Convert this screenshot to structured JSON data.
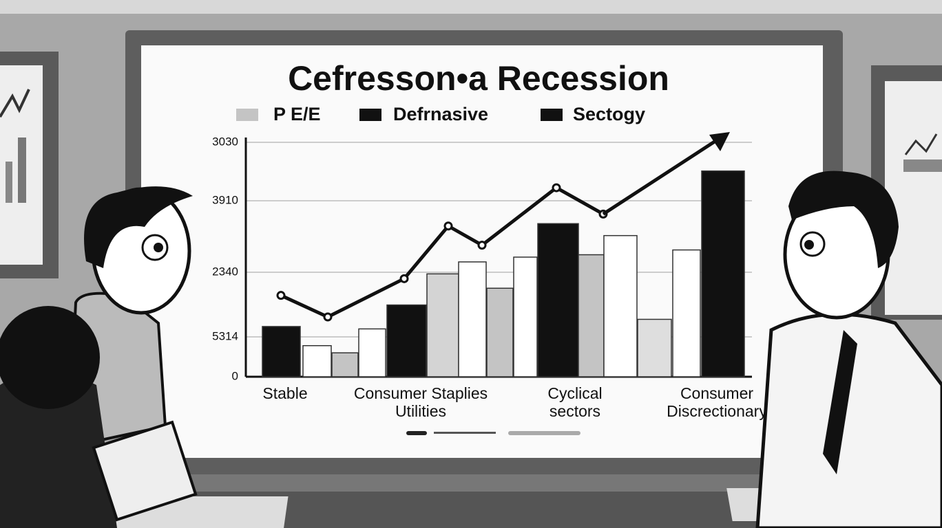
{
  "chart_data": {
    "type": "bar",
    "title": "Cefresson•a Recession",
    "legend": [
      {
        "name": "P E/E",
        "color": "#c4c4c4"
      },
      {
        "name": "Defrnasive",
        "color": "#111111"
      },
      {
        "name": "Sectogy",
        "color": "#111111"
      }
    ],
    "y_axis_labels": [
      "3030",
      "3910",
      "2340",
      "5314",
      "0"
    ],
    "category_labels": [
      [
        "Stable"
      ],
      [
        "Consumer Staplies",
        "Utilities"
      ],
      [
        "Cyclical",
        "sectors"
      ],
      [
        "Consumer",
        "Discrectionary"
      ]
    ],
    "ylim": [
      0,
      100
    ],
    "bars": [
      {
        "value": 21,
        "color": "#111111"
      },
      {
        "value": 13,
        "color": "#ffffff"
      },
      {
        "value": 10,
        "color": "#c4c4c4"
      },
      {
        "value": 20,
        "color": "#ffffff"
      },
      {
        "value": 30,
        "color": "#111111"
      },
      {
        "value": 43,
        "color": "#d4d4d4"
      },
      {
        "value": 48,
        "color": "#ffffff"
      },
      {
        "value": 37,
        "color": "#c4c4c4"
      },
      {
        "value": 50,
        "color": "#ffffff"
      },
      {
        "value": 64,
        "color": "#111111"
      },
      {
        "value": 51,
        "color": "#c4c4c4"
      },
      {
        "value": 59,
        "color": "#ffffff"
      },
      {
        "value": 24,
        "color": "#dedede"
      },
      {
        "value": 53,
        "color": "#ffffff"
      },
      {
        "value": 86,
        "color": "#111111"
      }
    ],
    "line": {
      "color": "#111111",
      "values": [
        34,
        25,
        41,
        63,
        55,
        79,
        68
      ]
    }
  }
}
